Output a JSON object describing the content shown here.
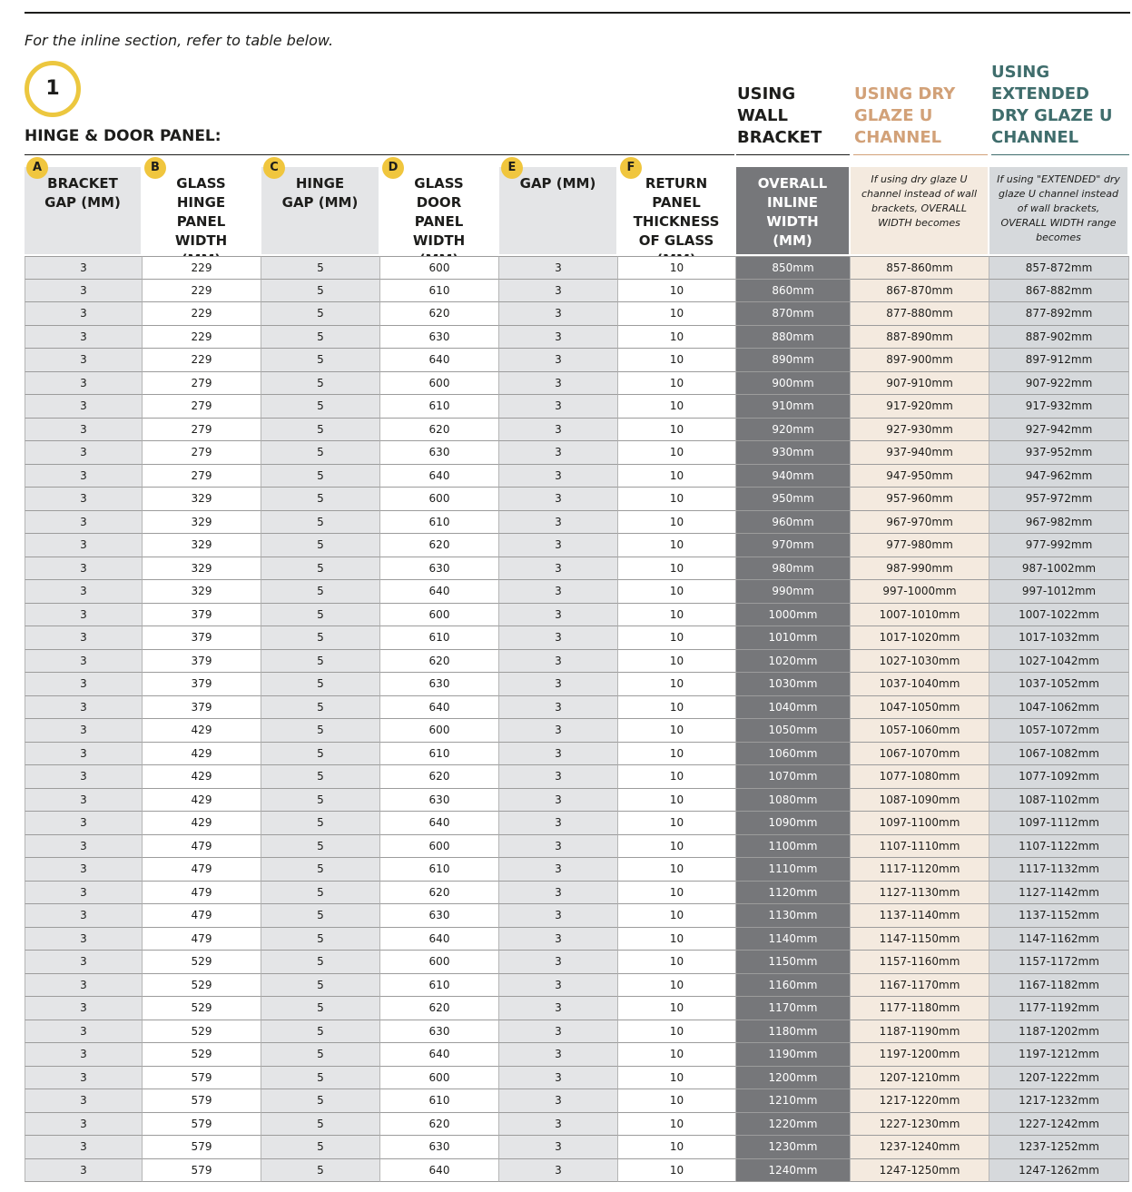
{
  "intro": "For the inline section, refer to table below.",
  "section": {
    "number": 1,
    "title": "HINGE & DOOR PANEL:"
  },
  "group_headers": [
    "USING WALL BRACKET",
    "USING DRY GLAZE U CHANNEL",
    "USING EXTENDED DRY GLAZE U CHANNEL"
  ],
  "table": {
    "columns": [
      {
        "letter": "A",
        "label": "BRACKET GAP (MM)"
      },
      {
        "letter": "B",
        "label": "GLASS HINGE PANEL WIDTH (MM)"
      },
      {
        "letter": "C",
        "label": "HINGE GAP (MM)"
      },
      {
        "letter": "D",
        "label": "GLASS DOOR PANEL WIDTH (MM)"
      },
      {
        "letter": "E",
        "label": "GAP (MM)"
      },
      {
        "letter": "F",
        "label": "RETURN PANEL THICKNESS OF GLASS (MM)"
      },
      {
        "label": "OVERALL INLINE WIDTH (MM)"
      },
      {
        "label": "If using dry glaze U channel instead of wall brackets, OVERALL WIDTH becomes"
      },
      {
        "label": "If using \"EXTENDED\" dry glaze U channel instead of wall brackets, OVERALL WIDTH range becomes"
      }
    ],
    "rows": [
      [
        3,
        229,
        5,
        600,
        3,
        10,
        "850mm",
        "857-860mm",
        "857-872mm"
      ],
      [
        3,
        229,
        5,
        610,
        3,
        10,
        "860mm",
        "867-870mm",
        "867-882mm"
      ],
      [
        3,
        229,
        5,
        620,
        3,
        10,
        "870mm",
        "877-880mm",
        "877-892mm"
      ],
      [
        3,
        229,
        5,
        630,
        3,
        10,
        "880mm",
        "887-890mm",
        "887-902mm"
      ],
      [
        3,
        229,
        5,
        640,
        3,
        10,
        "890mm",
        "897-900mm",
        "897-912mm"
      ],
      [
        3,
        279,
        5,
        600,
        3,
        10,
        "900mm",
        "907-910mm",
        "907-922mm"
      ],
      [
        3,
        279,
        5,
        610,
        3,
        10,
        "910mm",
        "917-920mm",
        "917-932mm"
      ],
      [
        3,
        279,
        5,
        620,
        3,
        10,
        "920mm",
        "927-930mm",
        "927-942mm"
      ],
      [
        3,
        279,
        5,
        630,
        3,
        10,
        "930mm",
        "937-940mm",
        "937-952mm"
      ],
      [
        3,
        279,
        5,
        640,
        3,
        10,
        "940mm",
        "947-950mm",
        "947-962mm"
      ],
      [
        3,
        329,
        5,
        600,
        3,
        10,
        "950mm",
        "957-960mm",
        "957-972mm"
      ],
      [
        3,
        329,
        5,
        610,
        3,
        10,
        "960mm",
        "967-970mm",
        "967-982mm"
      ],
      [
        3,
        329,
        5,
        620,
        3,
        10,
        "970mm",
        "977-980mm",
        "977-992mm"
      ],
      [
        3,
        329,
        5,
        630,
        3,
        10,
        "980mm",
        "987-990mm",
        "987-1002mm"
      ],
      [
        3,
        329,
        5,
        640,
        3,
        10,
        "990mm",
        "997-1000mm",
        "997-1012mm"
      ],
      [
        3,
        379,
        5,
        600,
        3,
        10,
        "1000mm",
        "1007-1010mm",
        "1007-1022mm"
      ],
      [
        3,
        379,
        5,
        610,
        3,
        10,
        "1010mm",
        "1017-1020mm",
        "1017-1032mm"
      ],
      [
        3,
        379,
        5,
        620,
        3,
        10,
        "1020mm",
        "1027-1030mm",
        "1027-1042mm"
      ],
      [
        3,
        379,
        5,
        630,
        3,
        10,
        "1030mm",
        "1037-1040mm",
        "1037-1052mm"
      ],
      [
        3,
        379,
        5,
        640,
        3,
        10,
        "1040mm",
        "1047-1050mm",
        "1047-1062mm"
      ],
      [
        3,
        429,
        5,
        600,
        3,
        10,
        "1050mm",
        "1057-1060mm",
        "1057-1072mm"
      ],
      [
        3,
        429,
        5,
        610,
        3,
        10,
        "1060mm",
        "1067-1070mm",
        "1067-1082mm"
      ],
      [
        3,
        429,
        5,
        620,
        3,
        10,
        "1070mm",
        "1077-1080mm",
        "1077-1092mm"
      ],
      [
        3,
        429,
        5,
        630,
        3,
        10,
        "1080mm",
        "1087-1090mm",
        "1087-1102mm"
      ],
      [
        3,
        429,
        5,
        640,
        3,
        10,
        "1090mm",
        "1097-1100mm",
        "1097-1112mm"
      ],
      [
        3,
        479,
        5,
        600,
        3,
        10,
        "1100mm",
        "1107-1110mm",
        "1107-1122mm"
      ],
      [
        3,
        479,
        5,
        610,
        3,
        10,
        "1110mm",
        "1117-1120mm",
        "1117-1132mm"
      ],
      [
        3,
        479,
        5,
        620,
        3,
        10,
        "1120mm",
        "1127-1130mm",
        "1127-1142mm"
      ],
      [
        3,
        479,
        5,
        630,
        3,
        10,
        "1130mm",
        "1137-1140mm",
        "1137-1152mm"
      ],
      [
        3,
        479,
        5,
        640,
        3,
        10,
        "1140mm",
        "1147-1150mm",
        "1147-1162mm"
      ],
      [
        3,
        529,
        5,
        600,
        3,
        10,
        "1150mm",
        "1157-1160mm",
        "1157-1172mm"
      ],
      [
        3,
        529,
        5,
        610,
        3,
        10,
        "1160mm",
        "1167-1170mm",
        "1167-1182mm"
      ],
      [
        3,
        529,
        5,
        620,
        3,
        10,
        "1170mm",
        "1177-1180mm",
        "1177-1192mm"
      ],
      [
        3,
        529,
        5,
        630,
        3,
        10,
        "1180mm",
        "1187-1190mm",
        "1187-1202mm"
      ],
      [
        3,
        529,
        5,
        640,
        3,
        10,
        "1190mm",
        "1197-1200mm",
        "1197-1212mm"
      ],
      [
        3,
        579,
        5,
        600,
        3,
        10,
        "1200mm",
        "1207-1210mm",
        "1207-1222mm"
      ],
      [
        3,
        579,
        5,
        610,
        3,
        10,
        "1210mm",
        "1217-1220mm",
        "1217-1232mm"
      ],
      [
        3,
        579,
        5,
        620,
        3,
        10,
        "1220mm",
        "1227-1230mm",
        "1227-1242mm"
      ],
      [
        3,
        579,
        5,
        630,
        3,
        10,
        "1230mm",
        "1237-1240mm",
        "1237-1252mm"
      ],
      [
        3,
        579,
        5,
        640,
        3,
        10,
        "1240mm",
        "1247-1250mm",
        "1247-1262mm"
      ]
    ]
  }
}
